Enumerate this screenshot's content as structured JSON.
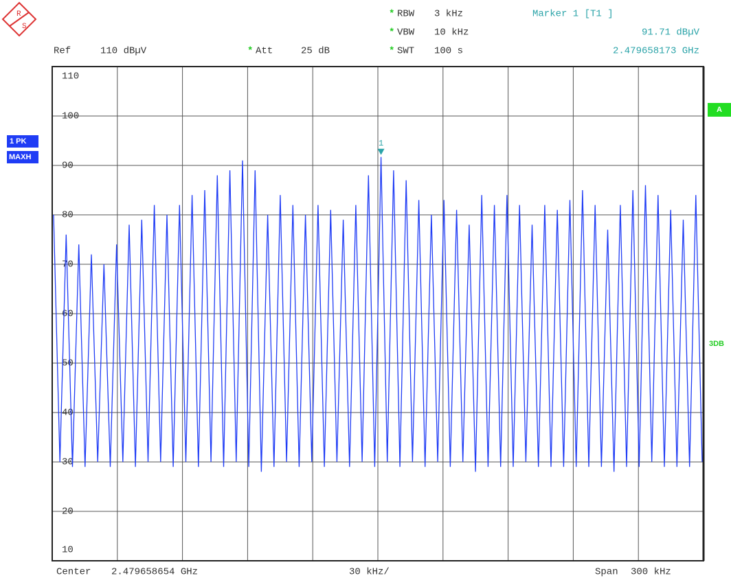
{
  "chart_data": {
    "type": "line",
    "logo": {
      "r": "R",
      "s": "S"
    },
    "header": {
      "rbw": "RBW",
      "rbw_value": "3 kHz",
      "vbw": "VBW",
      "vbw_value": "10 kHz",
      "swt": "SWT",
      "swt_value": "100 s",
      "ref": "Ref",
      "ref_value": "110 dBµV",
      "att": "Att",
      "att_value": "25 dB",
      "star": "*",
      "marker_title": "Marker 1 [T1 ]",
      "marker_level": "91.71 dBµV",
      "marker_freq": "2.479658173 GHz"
    },
    "footer": {
      "center": "Center",
      "center_value": "2.479658654 GHz",
      "per_div": "30 kHz/",
      "span": "Span",
      "span_value": "300 kHz"
    },
    "side": {
      "trace": "1 PK",
      "mode": "MAXH",
      "a": "A",
      "db": "3DB"
    },
    "marker_label": "1",
    "marker_index": 52,
    "color": "#1f3cf5",
    "ylim": [
      10,
      110
    ],
    "yticks": [
      10,
      20,
      30,
      40,
      50,
      60,
      70,
      80,
      90,
      100,
      110
    ],
    "grid": true,
    "values": [
      80,
      30,
      76,
      29,
      74,
      29,
      72,
      30,
      70,
      29,
      74,
      30,
      78,
      29,
      79,
      30,
      82,
      30,
      80,
      29,
      82,
      30,
      84,
      29,
      85,
      30,
      88,
      29,
      89,
      30,
      91,
      29,
      89,
      28,
      80,
      29,
      84,
      30,
      82,
      29,
      80,
      30,
      82,
      29,
      81,
      30,
      79,
      29,
      82,
      30,
      88,
      29,
      91.71,
      30,
      89,
      29,
      87,
      30,
      83,
      29,
      80,
      30,
      83,
      29,
      81,
      30,
      78,
      28,
      84,
      29,
      82,
      29,
      84,
      29,
      82,
      30,
      78,
      29,
      82,
      29,
      81,
      29,
      83,
      29,
      85,
      29,
      82,
      29,
      77,
      28,
      82,
      29,
      85,
      29,
      86,
      30,
      84,
      29,
      81,
      29,
      79,
      29,
      84,
      30
    ]
  }
}
